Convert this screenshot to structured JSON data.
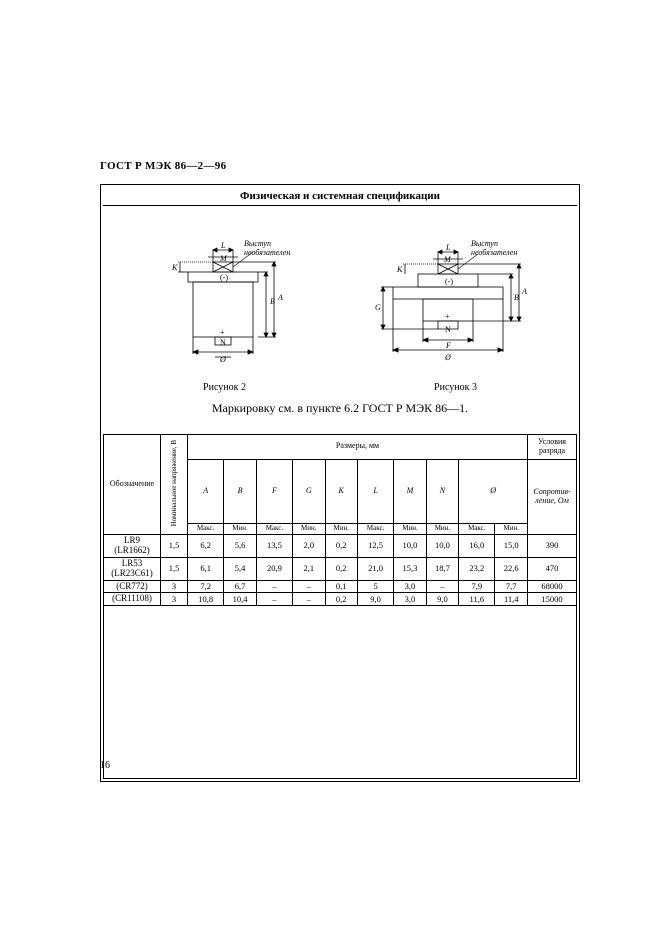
{
  "doc_id": "ГОСТ Р МЭК 86—2—96",
  "block_title": "Физическая и системная спецификации",
  "figure2_label": "Рисунок 2",
  "figure3_label": "Рисунок 3",
  "diagram_note": "Выступ необязателен",
  "marking_note": "Маркировку см. в пункте 6.2 ГОСТ Р МЭК 86—1.",
  "headers": {
    "designation": "Обозначение",
    "nominal_voltage": "Номинальное напряжение, В",
    "dimensions": "Размеры, мм",
    "discharge_cond": "Условия разряда",
    "resistance": "Сопротив­ление, Ом",
    "max": "Макс.",
    "min": "Мин."
  },
  "cols": [
    "A",
    "B",
    "F",
    "G",
    "K",
    "L",
    "M",
    "N",
    "Ø"
  ],
  "rows": [
    {
      "d1": "LR9",
      "d2": "(LR1662)",
      "v": "1,5",
      "c": [
        "6,2",
        "5,6",
        "13,5",
        "2,0",
        "0,2",
        "12,5",
        "10,0",
        "10,0",
        "16,0",
        "15,0"
      ],
      "r": "390"
    },
    {
      "d1": "LR53",
      "d2": "(LR23C61)",
      "v": "1,5",
      "c": [
        "6,1",
        "5,4",
        "20,9",
        "2,1",
        "0,2",
        "21,0",
        "15,3",
        "18,7",
        "23,2",
        "22,6"
      ],
      "r": "470"
    },
    {
      "d1": "(CR772)",
      "d2": "",
      "v": "3",
      "c": [
        "7,2",
        "6,7",
        "–",
        "–",
        "0,1",
        "5",
        "3,0",
        "–",
        "7,9",
        "7,7"
      ],
      "r": "68000"
    },
    {
      "d1": "(CR11108)",
      "d2": "",
      "v": "3",
      "c": [
        "10,8",
        "10,4",
        "–",
        "–",
        "0,2",
        "9,0",
        "3,0",
        "9,0",
        "11,6",
        "11,4"
      ],
      "r": "15000"
    }
  ],
  "page_number": "16",
  "svg": {
    "stroke": "#000000",
    "hatch": "#000000",
    "label_font": "8"
  }
}
